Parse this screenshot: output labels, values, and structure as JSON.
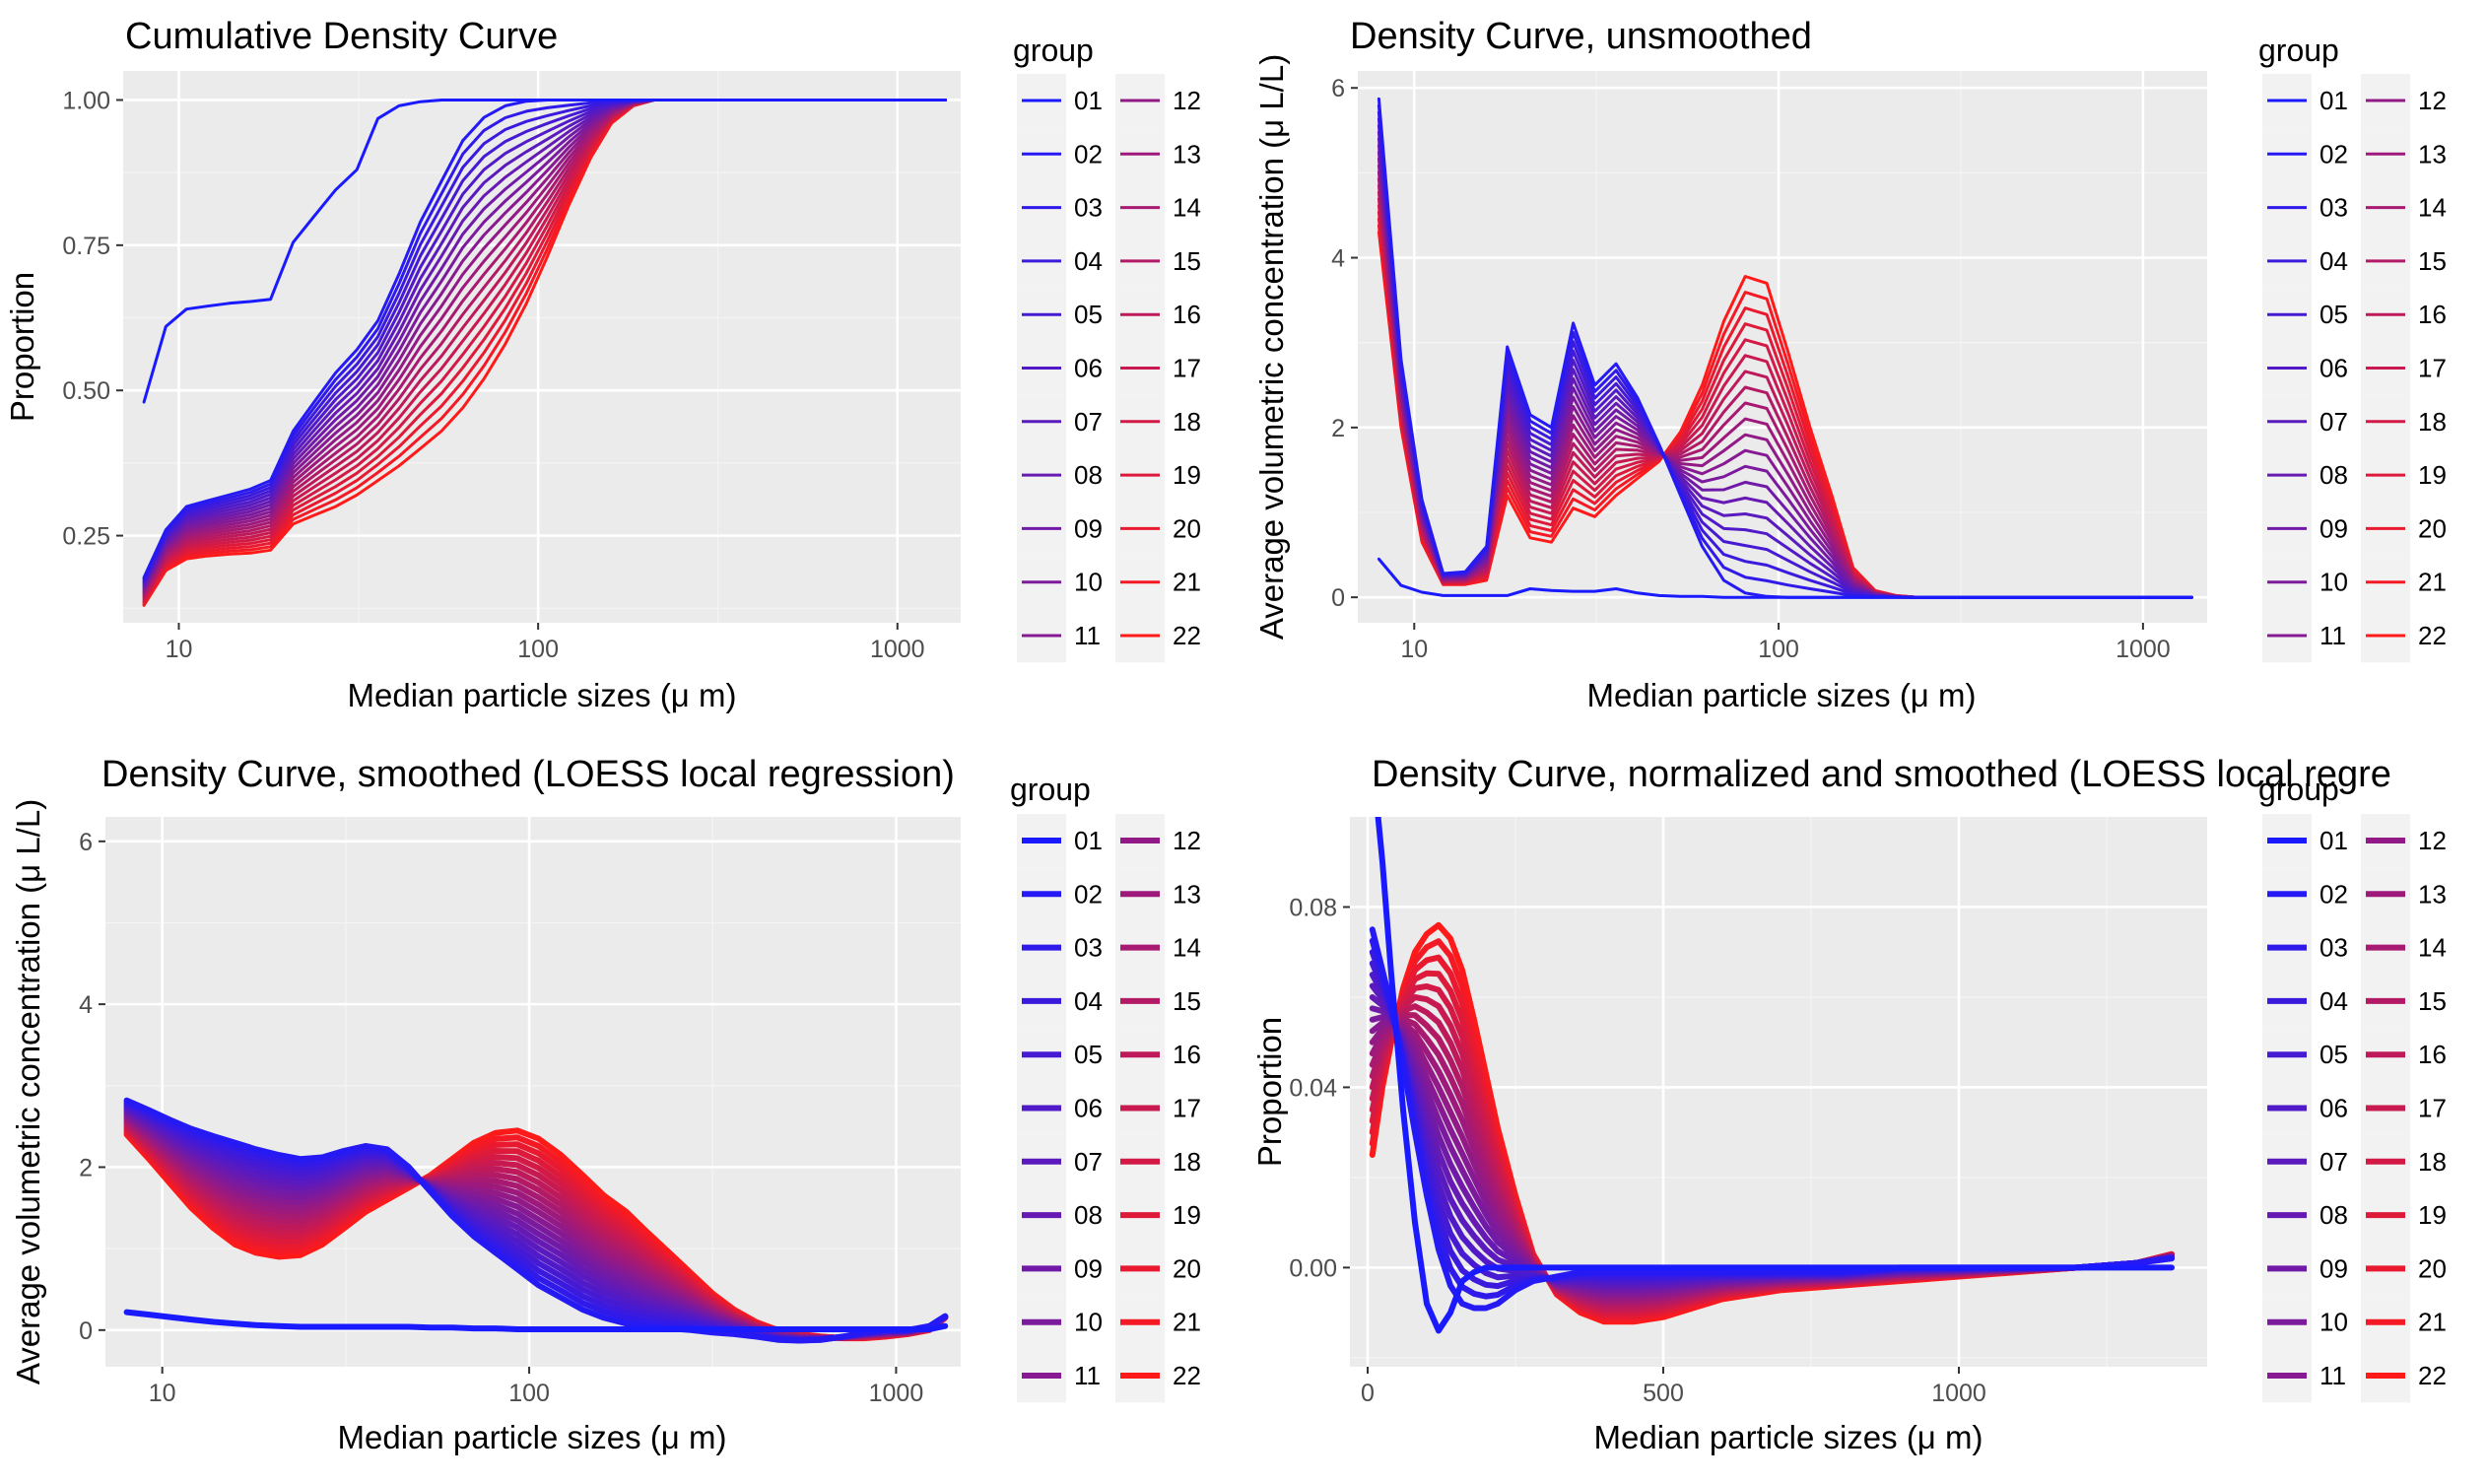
{
  "colors": {
    "panel_background": "#ebebeb",
    "grid_major": "#ffffff",
    "grid_minor": "#f4f4f4",
    "legend_key_background": "#f2f2f2",
    "group_start": "#1a1aff",
    "group_end": "#ff1a1a"
  },
  "chart_data": [
    {
      "type": "line",
      "title": "Cumulative Density Curve",
      "xlabel": "Median particle sizes (μ m)",
      "ylabel": "Proportion",
      "x_scale": "log10",
      "xlim": [
        7,
        1500
      ],
      "ylim": [
        0.1,
        1.05
      ],
      "x_ticks": [
        10,
        100,
        1000
      ],
      "x_tick_labels": [
        "10",
        "100",
        "1000"
      ],
      "y_ticks": [
        0.25,
        0.5,
        0.75,
        1.0
      ],
      "y_tick_labels": [
        "0.25",
        "0.50",
        "0.75",
        "1.00"
      ],
      "grid": true,
      "legend_title": "group",
      "legend_position": "right",
      "line_width": "thin",
      "x": [
        8,
        9.2,
        10.5,
        12,
        13.8,
        15.8,
        18,
        20.8,
        23.8,
        27.3,
        31.3,
        35.8,
        41,
        47,
        53.8,
        61.7,
        70.7,
        81,
        92.8,
        106,
        122,
        140,
        160,
        184,
        210,
        241,
        276,
        316,
        362,
        415,
        476,
        545,
        625,
        716,
        820,
        940,
        1077,
        1234,
        1360
      ],
      "series": [
        {
          "name": "01",
          "values": [
            0.48,
            0.61,
            0.64,
            0.645,
            0.65,
            0.653,
            0.657,
            0.755,
            0.8,
            0.845,
            0.88,
            0.968,
            0.99,
            0.997,
            1,
            1,
            1,
            1,
            1,
            1,
            1,
            1,
            1,
            1,
            1,
            1,
            1,
            1,
            1,
            1,
            1,
            1,
            1,
            1,
            1,
            1,
            1,
            1,
            1
          ]
        },
        {
          "name": "02",
          "values": [
            0.178,
            0.26,
            0.3,
            0.31,
            0.32,
            0.33,
            0.345,
            0.43,
            0.48,
            0.53,
            0.57,
            0.62,
            0.7,
            0.79,
            0.86,
            0.93,
            0.97,
            0.99,
            0.998,
            1,
            1,
            1,
            1,
            1,
            1,
            1,
            1,
            1,
            1,
            1,
            1,
            1,
            1,
            1,
            1,
            1,
            1,
            1,
            1
          ]
        },
        {
          "name": "22",
          "values": [
            0.13,
            0.19,
            0.21,
            0.215,
            0.218,
            0.22,
            0.225,
            0.27,
            0.285,
            0.3,
            0.32,
            0.345,
            0.37,
            0.4,
            0.43,
            0.47,
            0.52,
            0.58,
            0.65,
            0.73,
            0.82,
            0.9,
            0.96,
            0.99,
            1,
            1,
            1,
            1,
            1,
            1,
            1,
            1,
            1,
            1,
            1,
            1,
            1,
            1,
            1
          ]
        }
      ]
    },
    {
      "type": "line",
      "title": "Density Curve, unsmoothed",
      "xlabel": "Median particle sizes (μ m)",
      "ylabel": "Average volumetric concentration (μ L/L)",
      "x_scale": "log10",
      "xlim": [
        7,
        1500
      ],
      "ylim": [
        -0.3,
        6.2
      ],
      "x_ticks": [
        10,
        100,
        1000
      ],
      "x_tick_labels": [
        "10",
        "100",
        "1000"
      ],
      "y_ticks": [
        0,
        2,
        4,
        6
      ],
      "y_tick_labels": [
        "0",
        "2",
        "4",
        "6"
      ],
      "grid": true,
      "legend_title": "group",
      "legend_position": "right",
      "line_width": "thin",
      "x": [
        8,
        9.2,
        10.5,
        12,
        13.8,
        15.8,
        18,
        20.8,
        23.8,
        27.3,
        31.3,
        35.8,
        41,
        47,
        53.8,
        61.7,
        70.7,
        81,
        92.8,
        106,
        122,
        140,
        160,
        184,
        210,
        241,
        276,
        316,
        362,
        415,
        476,
        545,
        625,
        716,
        820,
        940,
        1077,
        1234,
        1360
      ],
      "series": [
        {
          "name": "01",
          "values": [
            0.45,
            0.14,
            0.06,
            0.02,
            0.02,
            0.02,
            0.02,
            0.1,
            0.08,
            0.07,
            0.07,
            0.1,
            0.05,
            0.02,
            0.01,
            0.01,
            0,
            0,
            0,
            0,
            0,
            0,
            0,
            0,
            0,
            0,
            0,
            0,
            0,
            0,
            0,
            0,
            0,
            0,
            0,
            0,
            0,
            0,
            0
          ]
        },
        {
          "name": "02",
          "values": [
            5.87,
            2.8,
            1.15,
            0.28,
            0.3,
            0.6,
            2.95,
            2.15,
            2.0,
            3.23,
            2.5,
            2.75,
            2.35,
            1.8,
            1.2,
            0.6,
            0.2,
            0.05,
            0.01,
            0,
            0,
            0,
            0,
            0,
            0,
            0,
            0,
            0,
            0,
            0,
            0,
            0,
            0,
            0,
            0,
            0,
            0,
            0,
            0
          ]
        },
        {
          "name": "22",
          "values": [
            4.3,
            2.0,
            0.65,
            0.15,
            0.15,
            0.2,
            1.2,
            0.7,
            0.65,
            1.05,
            0.95,
            1.2,
            1.4,
            1.6,
            1.95,
            2.5,
            3.25,
            3.78,
            3.7,
            2.9,
            2.0,
            1.2,
            0.35,
            0.08,
            0.02,
            0,
            0,
            0,
            0,
            0,
            0,
            0,
            0,
            0,
            0,
            0,
            0,
            0,
            0
          ]
        }
      ]
    },
    {
      "type": "line",
      "title": "Density Curve, smoothed (LOESS local regression)",
      "xlabel": "Median particle sizes (μ m)",
      "ylabel": "Average volumetric concentration (μ L/L)",
      "x_scale": "log10",
      "xlim": [
        7,
        1500
      ],
      "ylim": [
        -0.45,
        6.3
      ],
      "x_ticks": [
        10,
        100,
        1000
      ],
      "x_tick_labels": [
        "10",
        "100",
        "1000"
      ],
      "y_ticks": [
        0,
        2,
        4,
        6
      ],
      "y_tick_labels": [
        "0",
        "2",
        "4",
        "6"
      ],
      "grid": true,
      "legend_title": "group",
      "legend_position": "right",
      "line_width": "thick",
      "x": [
        8,
        9.2,
        10.5,
        12,
        13.8,
        15.8,
        18,
        20.8,
        23.8,
        27.3,
        31.3,
        35.8,
        41,
        47,
        53.8,
        61.7,
        70.7,
        81,
        92.8,
        106,
        122,
        140,
        160,
        184,
        210,
        241,
        276,
        316,
        362,
        415,
        476,
        545,
        625,
        716,
        820,
        940,
        1077,
        1234,
        1360
      ],
      "series": [
        {
          "name": "01",
          "values": [
            0.22,
            0.19,
            0.16,
            0.13,
            0.1,
            0.08,
            0.06,
            0.05,
            0.04,
            0.04,
            0.04,
            0.04,
            0.04,
            0.04,
            0.03,
            0.03,
            0.02,
            0.02,
            0.01,
            0.01,
            0.01,
            0.01,
            0.01,
            0.01,
            0.01,
            0.01,
            0.01,
            0.01,
            0.01,
            0.01,
            0.01,
            0.01,
            0.01,
            0.01,
            0.01,
            0.01,
            0.01,
            0.01,
            0.05
          ]
        },
        {
          "name": "02",
          "values": [
            2.82,
            2.7,
            2.58,
            2.47,
            2.38,
            2.3,
            2.22,
            2.15,
            2.1,
            2.12,
            2.2,
            2.26,
            2.22,
            2.0,
            1.7,
            1.4,
            1.15,
            0.95,
            0.75,
            0.55,
            0.4,
            0.25,
            0.15,
            0.08,
            0.04,
            0.02,
            0,
            -0.03,
            -0.05,
            -0.08,
            -0.12,
            -0.13,
            -0.12,
            -0.08,
            -0.03,
            0,
            0,
            0.05,
            0.17
          ]
        },
        {
          "name": "22",
          "values": [
            2.4,
            2.1,
            1.8,
            1.5,
            1.25,
            1.05,
            0.95,
            0.9,
            0.92,
            1.05,
            1.25,
            1.45,
            1.6,
            1.75,
            1.9,
            2.1,
            2.3,
            2.42,
            2.45,
            2.35,
            2.15,
            1.9,
            1.65,
            1.45,
            1.2,
            0.95,
            0.7,
            0.45,
            0.25,
            0.1,
            0,
            -0.05,
            -0.08,
            -0.1,
            -0.1,
            -0.08,
            -0.05,
            0,
            0.15
          ]
        }
      ]
    },
    {
      "type": "line",
      "title": "Density Curve, normalized and smoothed (LOESS local regre",
      "xlabel": "Median particle sizes (μ m)",
      "ylabel": "Proportion",
      "x_scale": "linear",
      "xlim": [
        -30,
        1420
      ],
      "ylim": [
        -0.022,
        0.1
      ],
      "x_ticks": [
        0,
        500,
        1000
      ],
      "x_tick_labels": [
        "0",
        "500",
        "1000"
      ],
      "y_ticks": [
        0.0,
        0.04,
        0.08
      ],
      "y_tick_labels": [
        "0.00",
        "0.04",
        "0.08"
      ],
      "grid": true,
      "legend_title": "group",
      "legend_position": "right",
      "line_width": "thick",
      "x": [
        8,
        25,
        40,
        60,
        80,
        100,
        120,
        140,
        160,
        180,
        200,
        220,
        250,
        280,
        320,
        360,
        400,
        450,
        500,
        550,
        600,
        700,
        800,
        900,
        1000,
        1100,
        1200,
        1300,
        1360
      ],
      "series": [
        {
          "name": "01",
          "values": [
            0.113,
            0.09,
            0.065,
            0.035,
            0.01,
            -0.008,
            -0.014,
            -0.01,
            -0.003,
            -0.001,
            0,
            0,
            0,
            0,
            0,
            0,
            0,
            0,
            0,
            0,
            0,
            0,
            0,
            0,
            0,
            0,
            0,
            0,
            0
          ]
        },
        {
          "name": "02",
          "values": [
            0.075,
            0.066,
            0.058,
            0.045,
            0.03,
            0.016,
            0.004,
            -0.004,
            -0.008,
            -0.009,
            -0.009,
            -0.008,
            -0.005,
            -0.003,
            -0.002,
            -0.001,
            -0.001,
            -0.001,
            -0.001,
            -0.001,
            -0.001,
            -0.001,
            -0.001,
            0,
            0,
            0,
            0,
            0.001,
            0.002
          ]
        },
        {
          "name": "22",
          "values": [
            0.025,
            0.04,
            0.05,
            0.062,
            0.07,
            0.074,
            0.076,
            0.073,
            0.066,
            0.055,
            0.043,
            0.031,
            0.016,
            0.003,
            -0.006,
            -0.01,
            -0.012,
            -0.012,
            -0.011,
            -0.009,
            -0.007,
            -0.005,
            -0.004,
            -0.003,
            -0.002,
            -0.001,
            0,
            0.001,
            0.003
          ]
        }
      ]
    }
  ],
  "legend_groups": [
    "01",
    "02",
    "03",
    "04",
    "05",
    "06",
    "07",
    "08",
    "09",
    "10",
    "11",
    "12",
    "13",
    "14",
    "15",
    "16",
    "17",
    "18",
    "19",
    "20",
    "21",
    "22"
  ]
}
